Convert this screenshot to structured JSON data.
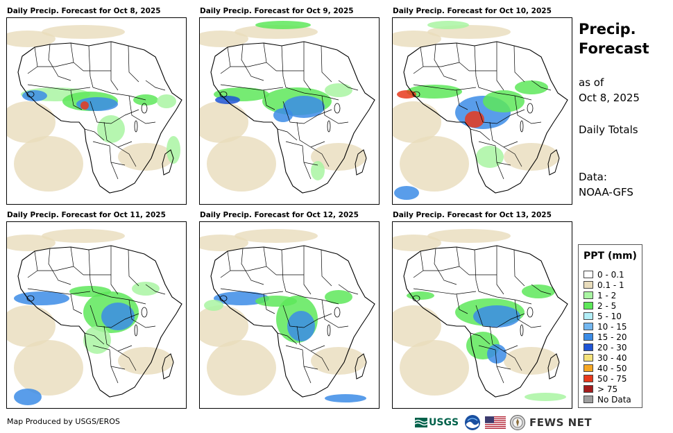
{
  "panels": [
    {
      "title": "Daily Precip. Forecast for Oct 8, 2025"
    },
    {
      "title": "Daily Precip. Forecast for Oct 9, 2025"
    },
    {
      "title": "Daily Precip. Forecast for Oct 10, 2025"
    },
    {
      "title": "Daily Precip. Forecast for Oct 11, 2025"
    },
    {
      "title": "Daily Precip. Forecast for Oct 12, 2025"
    },
    {
      "title": "Daily Precip. Forecast for Oct 13, 2025"
    }
  ],
  "side": {
    "title_line1": "Precip.",
    "title_line2": "Forecast",
    "as_of_line1": "as of",
    "as_of_line2": "Oct 8, 2025",
    "daily_totals": "Daily Totals",
    "data_label": "Data:",
    "data_source": "NOAA-GFS"
  },
  "legend": {
    "title": "PPT (mm)",
    "items": [
      {
        "label": "0 - 0.1",
        "color": "#ffffff"
      },
      {
        "label": "0.1 - 1",
        "color": "#e8dcbc"
      },
      {
        "label": "1 - 2",
        "color": "#a9f5a2"
      },
      {
        "label": "2 - 5",
        "color": "#5ee85a"
      },
      {
        "label": "5 - 10",
        "color": "#b3eef7"
      },
      {
        "label": "10 - 15",
        "color": "#74b7f0"
      },
      {
        "label": "15 - 20",
        "color": "#3c8ce6"
      },
      {
        "label": "20 - 30",
        "color": "#1f55d6"
      },
      {
        "label": "30 - 40",
        "color": "#f5e27a"
      },
      {
        "label": "40 - 50",
        "color": "#f5a623"
      },
      {
        "label": "50 - 75",
        "color": "#e8391c"
      },
      {
        "label": "> 75",
        "color": "#a31c1c"
      },
      {
        "label": "No Data",
        "color": "#9e9e9e"
      }
    ]
  },
  "footer": {
    "credit": "Map Produced by USGS/EROS",
    "usgs_logo": "USGS",
    "fews_logo": "FEWS NET"
  },
  "colors": {
    "dry": "#e8dcbc",
    "light": "#a9f5a2",
    "moderate": "#5ee85a",
    "heavy": "#3c8ce6",
    "very_heavy": "#1f55d6",
    "extreme": "#e8391c"
  }
}
